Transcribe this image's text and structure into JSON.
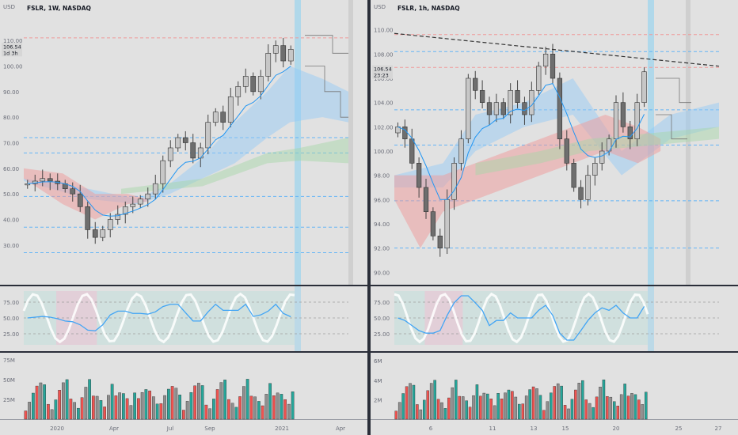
{
  "colors": {
    "up": "#26a69a",
    "down": "#ef5350",
    "neutral": "#8f8f8f",
    "blue": "#2196f3",
    "red": "#f44336",
    "text": "#131722",
    "muted": "#6a6d78",
    "tag": "#5d606b"
  },
  "left": {
    "title": "FSLR, 1W, NASDAQ",
    "currency": "USD",
    "price_label": "106.54",
    "countdown": "1d 3h",
    "y_ticks": [
      "110.00",
      "100.00",
      "90.00",
      "80.00",
      "70.00",
      "60.00",
      "50.00",
      "40.00",
      "30.00"
    ],
    "x_ticks": [
      "2020",
      "Apr",
      "Jul",
      "Sep",
      "2021",
      "Apr"
    ],
    "osc_ticks": [
      "75.00",
      "50.00",
      "25.00"
    ],
    "vol_ticks": [
      "75M",
      "50M",
      "25M"
    ]
  },
  "right": {
    "title": "FSLR, 1h, NASDAQ",
    "currency": "USD",
    "price_label": "106.54",
    "countdown": "23:23",
    "y_ticks": [
      "110.00",
      "108.00",
      "106.00",
      "104.00",
      "102.00",
      "100.00",
      "98.00",
      "96.00",
      "94.00",
      "92.00",
      "90.00"
    ],
    "x_ticks": [
      "6",
      "11",
      "13",
      "15",
      "20",
      "25",
      "27"
    ],
    "osc_ticks": [
      "75.00",
      "50.00",
      "25.00"
    ],
    "vol_ticks": [
      "6M",
      "4M",
      "2M"
    ]
  },
  "chart_data": [
    {
      "type": "candlestick",
      "title": "FSLR, 1W, NASDAQ",
      "xlabel": "",
      "ylabel": "USD",
      "ylim": [
        25,
        115
      ],
      "x_ticks": [
        "2020",
        "Apr",
        "Jul",
        "Sep",
        "2021",
        "Apr"
      ],
      "approx_close_series": [
        54,
        55,
        56,
        55,
        54,
        52,
        50,
        45,
        36,
        33,
        36,
        40,
        42,
        45,
        46,
        48,
        50,
        54,
        63,
        68,
        72,
        70,
        64,
        68,
        78,
        82,
        78,
        88,
        92,
        96,
        90,
        96,
        105,
        108,
        102,
        106.54
      ],
      "last_price": 106.54
    },
    {
      "type": "candlestick",
      "title": "FSLR, 1h, NASDAQ",
      "xlabel": "",
      "ylabel": "USD",
      "ylim": [
        89.5,
        110.5
      ],
      "x_ticks": [
        "6",
        "11",
        "13",
        "15",
        "20",
        "25",
        "27"
      ],
      "approx_close_series": [
        102,
        101,
        99,
        97,
        95,
        93,
        92,
        96,
        99,
        101,
        106,
        105,
        104,
        103,
        104,
        103,
        105,
        104,
        103,
        105,
        107,
        108,
        106,
        101,
        99,
        97,
        96,
        98,
        99,
        100,
        101,
        104,
        102,
        101,
        104,
        106.54
      ],
      "last_price": 106.54
    }
  ]
}
